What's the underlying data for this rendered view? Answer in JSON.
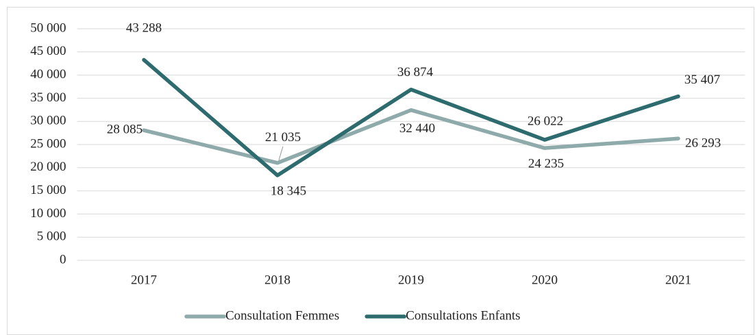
{
  "chart_data": {
    "type": "line",
    "categories": [
      "2017",
      "2018",
      "2019",
      "2020",
      "2021"
    ],
    "series": [
      {
        "name": "Consultation Femmes",
        "color": "#8faaaa",
        "values": [
          28085,
          21035,
          32440,
          24235,
          26293
        ],
        "value_labels": [
          "28 085",
          "21 035",
          "32 440",
          "24 235",
          "26 293"
        ]
      },
      {
        "name": "Consultations Enfants",
        "color": "#2d6b6e",
        "values": [
          43288,
          18345,
          36874,
          26022,
          35407
        ],
        "value_labels": [
          "43 288",
          "18 345",
          "36 874",
          "26 022",
          "35 407"
        ]
      }
    ],
    "ylim": [
      0,
      50000
    ],
    "yticks": [
      {
        "value": 0,
        "label": "0"
      },
      {
        "value": 5000,
        "label": "5 000"
      },
      {
        "value": 10000,
        "label": "10 000"
      },
      {
        "value": 15000,
        "label": "15 000"
      },
      {
        "value": 20000,
        "label": "20 000"
      },
      {
        "value": 25000,
        "label": "25 000"
      },
      {
        "value": 30000,
        "label": "30 000"
      },
      {
        "value": 35000,
        "label": "35 000"
      },
      {
        "value": 40000,
        "label": "40 000"
      },
      {
        "value": 45000,
        "label": "45 000"
      },
      {
        "value": 50000,
        "label": "50 000"
      }
    ],
    "grid": true,
    "legend": "bottom"
  }
}
